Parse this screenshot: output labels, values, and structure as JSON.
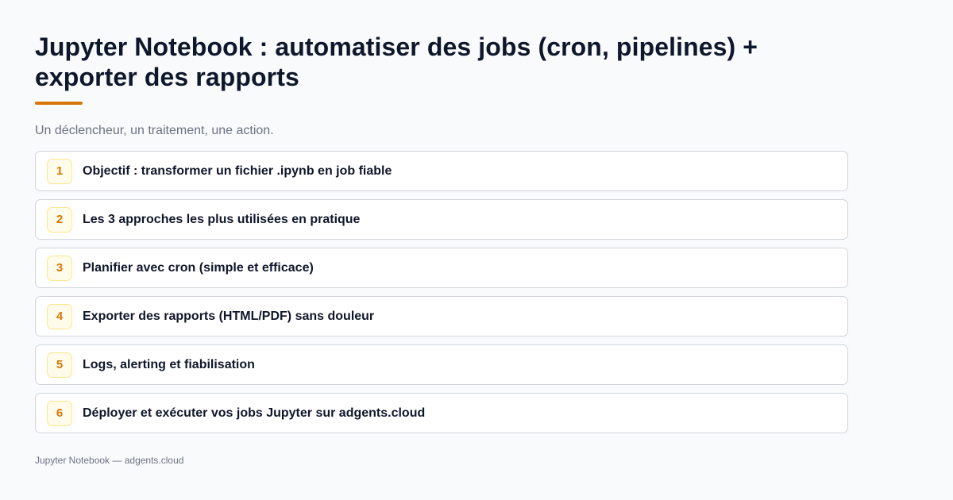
{
  "title": "Jupyter Notebook : automatiser des jobs (cron, pipelines) + exporter des rapports",
  "subtitle": "Un déclencheur, un traitement, une action.",
  "colors": {
    "accent": "#d97706",
    "background": "#f8fafc",
    "text": "#0f172a",
    "muted": "#6b7280"
  },
  "items": [
    {
      "number": "1",
      "label": "Objectif : transformer un fichier .ipynb en job fiable"
    },
    {
      "number": "2",
      "label": "Les 3 approches les plus utilisées en pratique"
    },
    {
      "number": "3",
      "label": "Planifier avec cron (simple et efficace)"
    },
    {
      "number": "4",
      "label": "Exporter des rapports (HTML/PDF) sans douleur"
    },
    {
      "number": "5",
      "label": "Logs, alerting et fiabilisation"
    },
    {
      "number": "6",
      "label": "Déployer et exécuter vos jobs Jupyter sur adgents.cloud"
    }
  ],
  "footer": "Jupyter Notebook — adgents.cloud"
}
